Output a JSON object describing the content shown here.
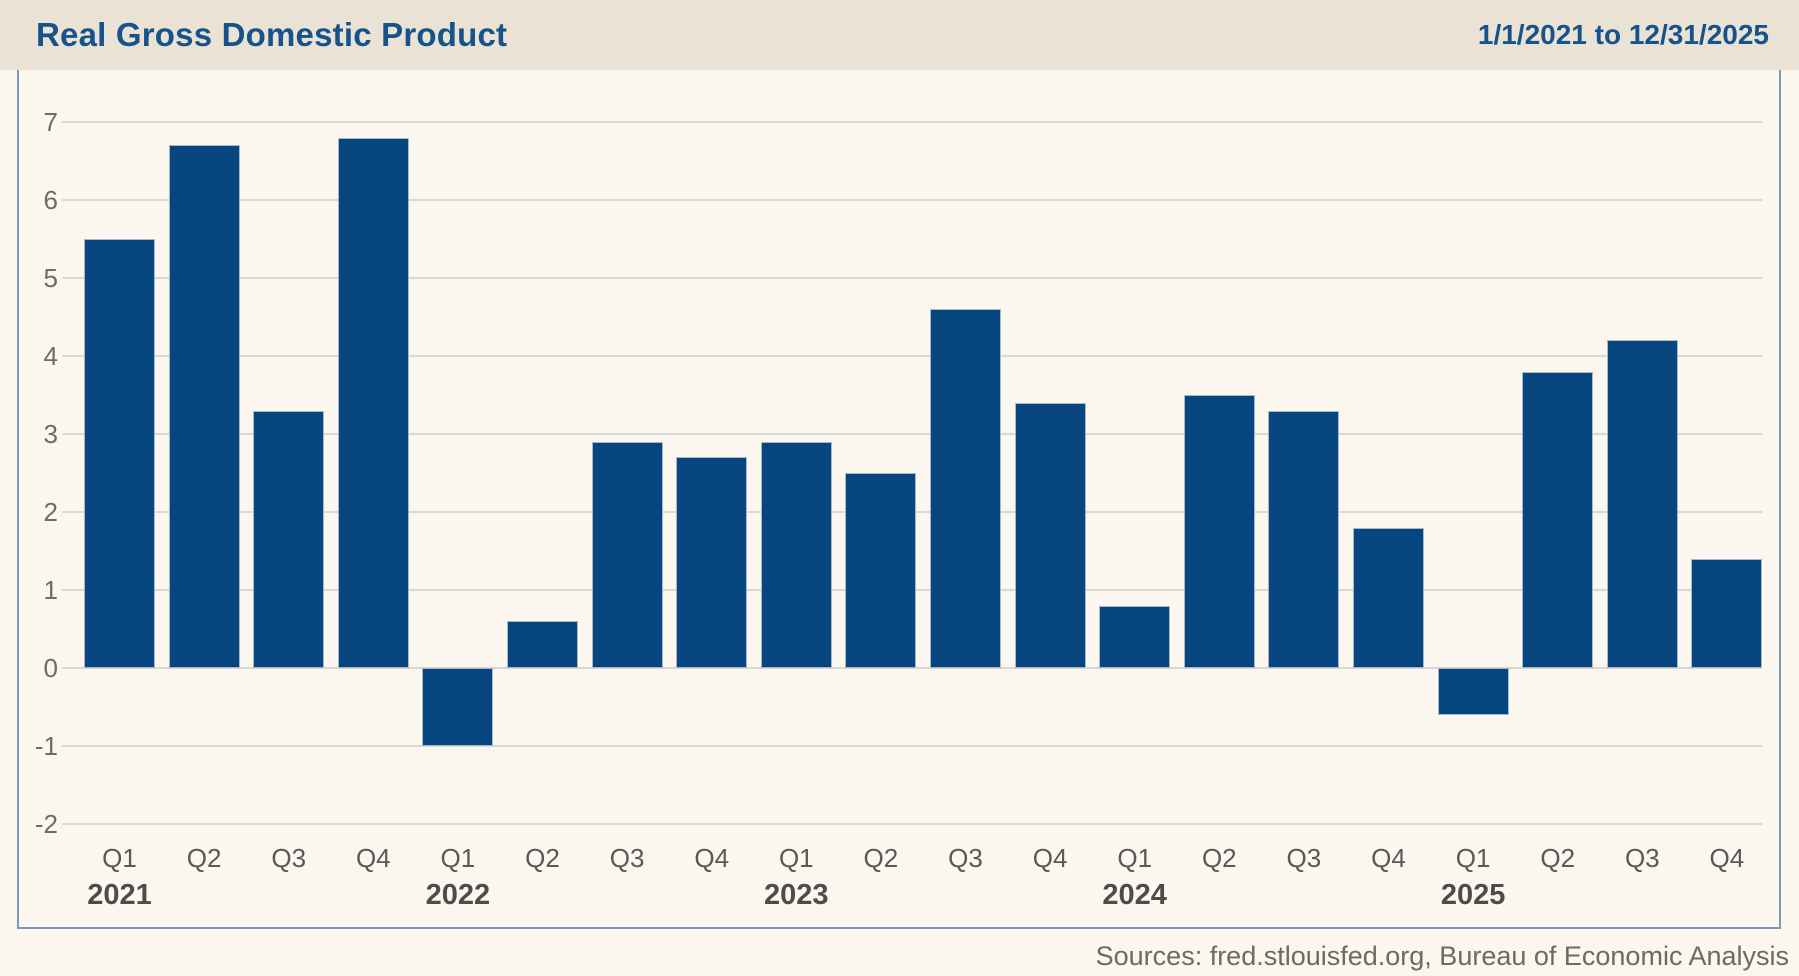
{
  "header": {
    "title": "Real Gross Domestic Product",
    "date_range": "1/1/2021 to 12/31/2025"
  },
  "footer": {
    "source": "Sources: fred.stlouisfed.org, Bureau of Economic Analysis"
  },
  "chart_data": {
    "type": "bar",
    "title": "Real Gross Domestic Product",
    "date_range": "1/1/2021 to 12/31/2025",
    "xlabel": "",
    "ylabel": "",
    "ylim": [
      -2,
      7
    ],
    "yticks": [
      7,
      6,
      5,
      4,
      3,
      2,
      1,
      0,
      -1,
      -2
    ],
    "grid": "horizontal",
    "legend": "none",
    "bar_color": "#07457e",
    "year_groups": [
      {
        "year": "2021",
        "quarters": [
          "Q1",
          "Q2",
          "Q3",
          "Q4"
        ],
        "values": [
          5.5,
          6.7,
          3.3,
          6.8
        ]
      },
      {
        "year": "2022",
        "quarters": [
          "Q1",
          "Q2",
          "Q3",
          "Q4"
        ],
        "values": [
          -1.0,
          0.6,
          2.9,
          2.7
        ]
      },
      {
        "year": "2023",
        "quarters": [
          "Q1",
          "Q2",
          "Q3",
          "Q4"
        ],
        "values": [
          2.9,
          2.5,
          4.6,
          3.4
        ]
      },
      {
        "year": "2024",
        "quarters": [
          "Q1",
          "Q2",
          "Q3",
          "Q4"
        ],
        "values": [
          0.8,
          3.5,
          3.3,
          1.8
        ]
      },
      {
        "year": "2025",
        "quarters": [
          "Q1",
          "Q2",
          "Q3",
          "Q4"
        ],
        "values": [
          -0.6,
          3.8,
          4.2,
          1.4
        ]
      }
    ],
    "source": "Sources: fred.stlouisfed.org, Bureau of Economic Analysis"
  },
  "colors": {
    "accent_blue": "#15538a",
    "bar": "#07457e",
    "plot_border": "#7999bb",
    "header_bg": "#e9e2d5",
    "chart_bg": "#fbf6ee",
    "gridline": "#dbd8d3",
    "axis_text": "#6e6c68",
    "year_text": "#4d4c4a",
    "source_text": "#6c6a66"
  }
}
